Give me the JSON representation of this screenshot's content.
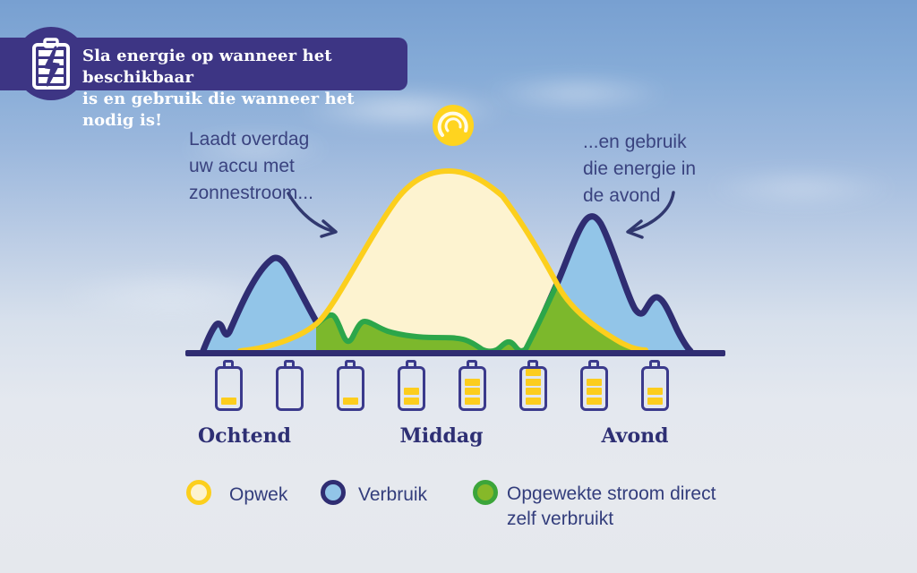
{
  "banner": {
    "icon": "battery-bolt-icon",
    "line1": "Sla energie op wanneer het beschikbaar",
    "line2": "is en gebruik die wanneer het nodig is!"
  },
  "annotations": {
    "left": {
      "lines": [
        "Laadt overdag",
        "uw accu met",
        "zonnestroom..."
      ],
      "arrow": "curved-arrow-down-right"
    },
    "right": {
      "lines": [
        "...en gebruik",
        "die energie in",
        "de avond"
      ],
      "arrow": "curved-arrow-down-left"
    }
  },
  "timeline": {
    "labels": [
      "Ochtend",
      "Middag",
      "Avond"
    ]
  },
  "batteries": {
    "max_segments": 4,
    "levels": [
      1,
      0,
      1,
      2,
      3,
      4,
      3,
      2
    ]
  },
  "legend": [
    {
      "label": "Opwek",
      "fill": "#fdf3d0",
      "border": "#fccf1d"
    },
    {
      "label": "Verbruik",
      "fill": "#92c5e8",
      "border": "#2f2d72"
    },
    {
      "label": "Opgewekte stroom direct zelf verbruikt",
      "fill": "#86b829",
      "border": "#3ca53a"
    }
  ],
  "colors": {
    "banner_bg": "#3d3584",
    "navy_stroke": "#2f2d72",
    "gold": "#fccf1d",
    "cream_fill": "#fdf3d0",
    "light_blue_fill": "#92c5e8",
    "green_fill": "#7cb82c",
    "green_stroke": "#2ca64a",
    "text_navy": "#3a437f",
    "battery_outline": "#3b3a8c",
    "battery_bar": "#fccd1d",
    "sun": "#ffd41f",
    "sky_top": "#78a0d1",
    "sky_bottom": "#e6e9ee"
  },
  "chart_data": {
    "type": "area",
    "title": "Sla energie op wanneer het beschikbaar is en gebruik die wanneer het nodig is!",
    "x_axis": {
      "labels": [
        "Ochtend",
        "Middag",
        "Avond"
      ],
      "numeric": false,
      "note": "day progression 0-100, no numeric ticks shown"
    },
    "y_axis": {
      "label": "",
      "note": "relative height 0-100, no numeric ticks shown"
    },
    "grid": false,
    "legend_position": "bottom",
    "series": [
      {
        "name": "Opwek",
        "style": "bell curve peaking at Middag, gold outline, cream fill",
        "points": [
          [
            10,
            1
          ],
          [
            16,
            4
          ],
          [
            22,
            12
          ],
          [
            28,
            30
          ],
          [
            34,
            62
          ],
          [
            40,
            88
          ],
          [
            46,
            99
          ],
          [
            50,
            100
          ],
          [
            54,
            98
          ],
          [
            60,
            82
          ],
          [
            66,
            52
          ],
          [
            72,
            26
          ],
          [
            78,
            9
          ],
          [
            84,
            2
          ],
          [
            88,
            0
          ]
        ]
      },
      {
        "name": "Verbruik",
        "style": "two peak groups (Ochtend and Avond), navy outline, light blue fill",
        "points": [
          [
            3,
            0
          ],
          [
            5,
            14
          ],
          [
            7,
            11
          ],
          [
            10,
            28
          ],
          [
            13,
            49
          ],
          [
            16,
            52
          ],
          [
            20,
            30
          ],
          [
            24,
            12
          ],
          [
            28,
            6
          ],
          [
            33,
            13
          ],
          [
            38,
            5
          ],
          [
            44,
            7
          ],
          [
            48,
            4
          ],
          [
            52,
            3
          ],
          [
            56,
            6
          ],
          [
            58,
            2
          ],
          [
            60,
            1
          ],
          [
            63,
            14
          ],
          [
            66,
            38
          ],
          [
            70,
            72
          ],
          [
            73,
            75
          ],
          [
            76,
            45
          ],
          [
            78,
            20
          ],
          [
            80,
            22
          ],
          [
            82,
            29
          ],
          [
            85,
            15
          ],
          [
            88,
            4
          ],
          [
            90,
            0
          ]
        ]
      },
      {
        "name": "Opgewekte stroom direct zelf verbruikt",
        "style": "green area",
        "definition": "pointwise minimum of Opwek and Verbruik (overlap of generation and consumption)"
      }
    ],
    "annotations": [
      {
        "text": "Laadt overdag uw accu met zonnestroom...",
        "target": "Opwek bell curve",
        "arrow": "down-right"
      },
      {
        "text": "...en gebruik die energie in de avond",
        "target": "Verbruik evening peak",
        "arrow": "down-left"
      }
    ],
    "battery_state_icons": {
      "segments_per_icon": 4,
      "levels_left_to_right": [
        1,
        0,
        1,
        2,
        3,
        4,
        3,
        2
      ]
    }
  }
}
